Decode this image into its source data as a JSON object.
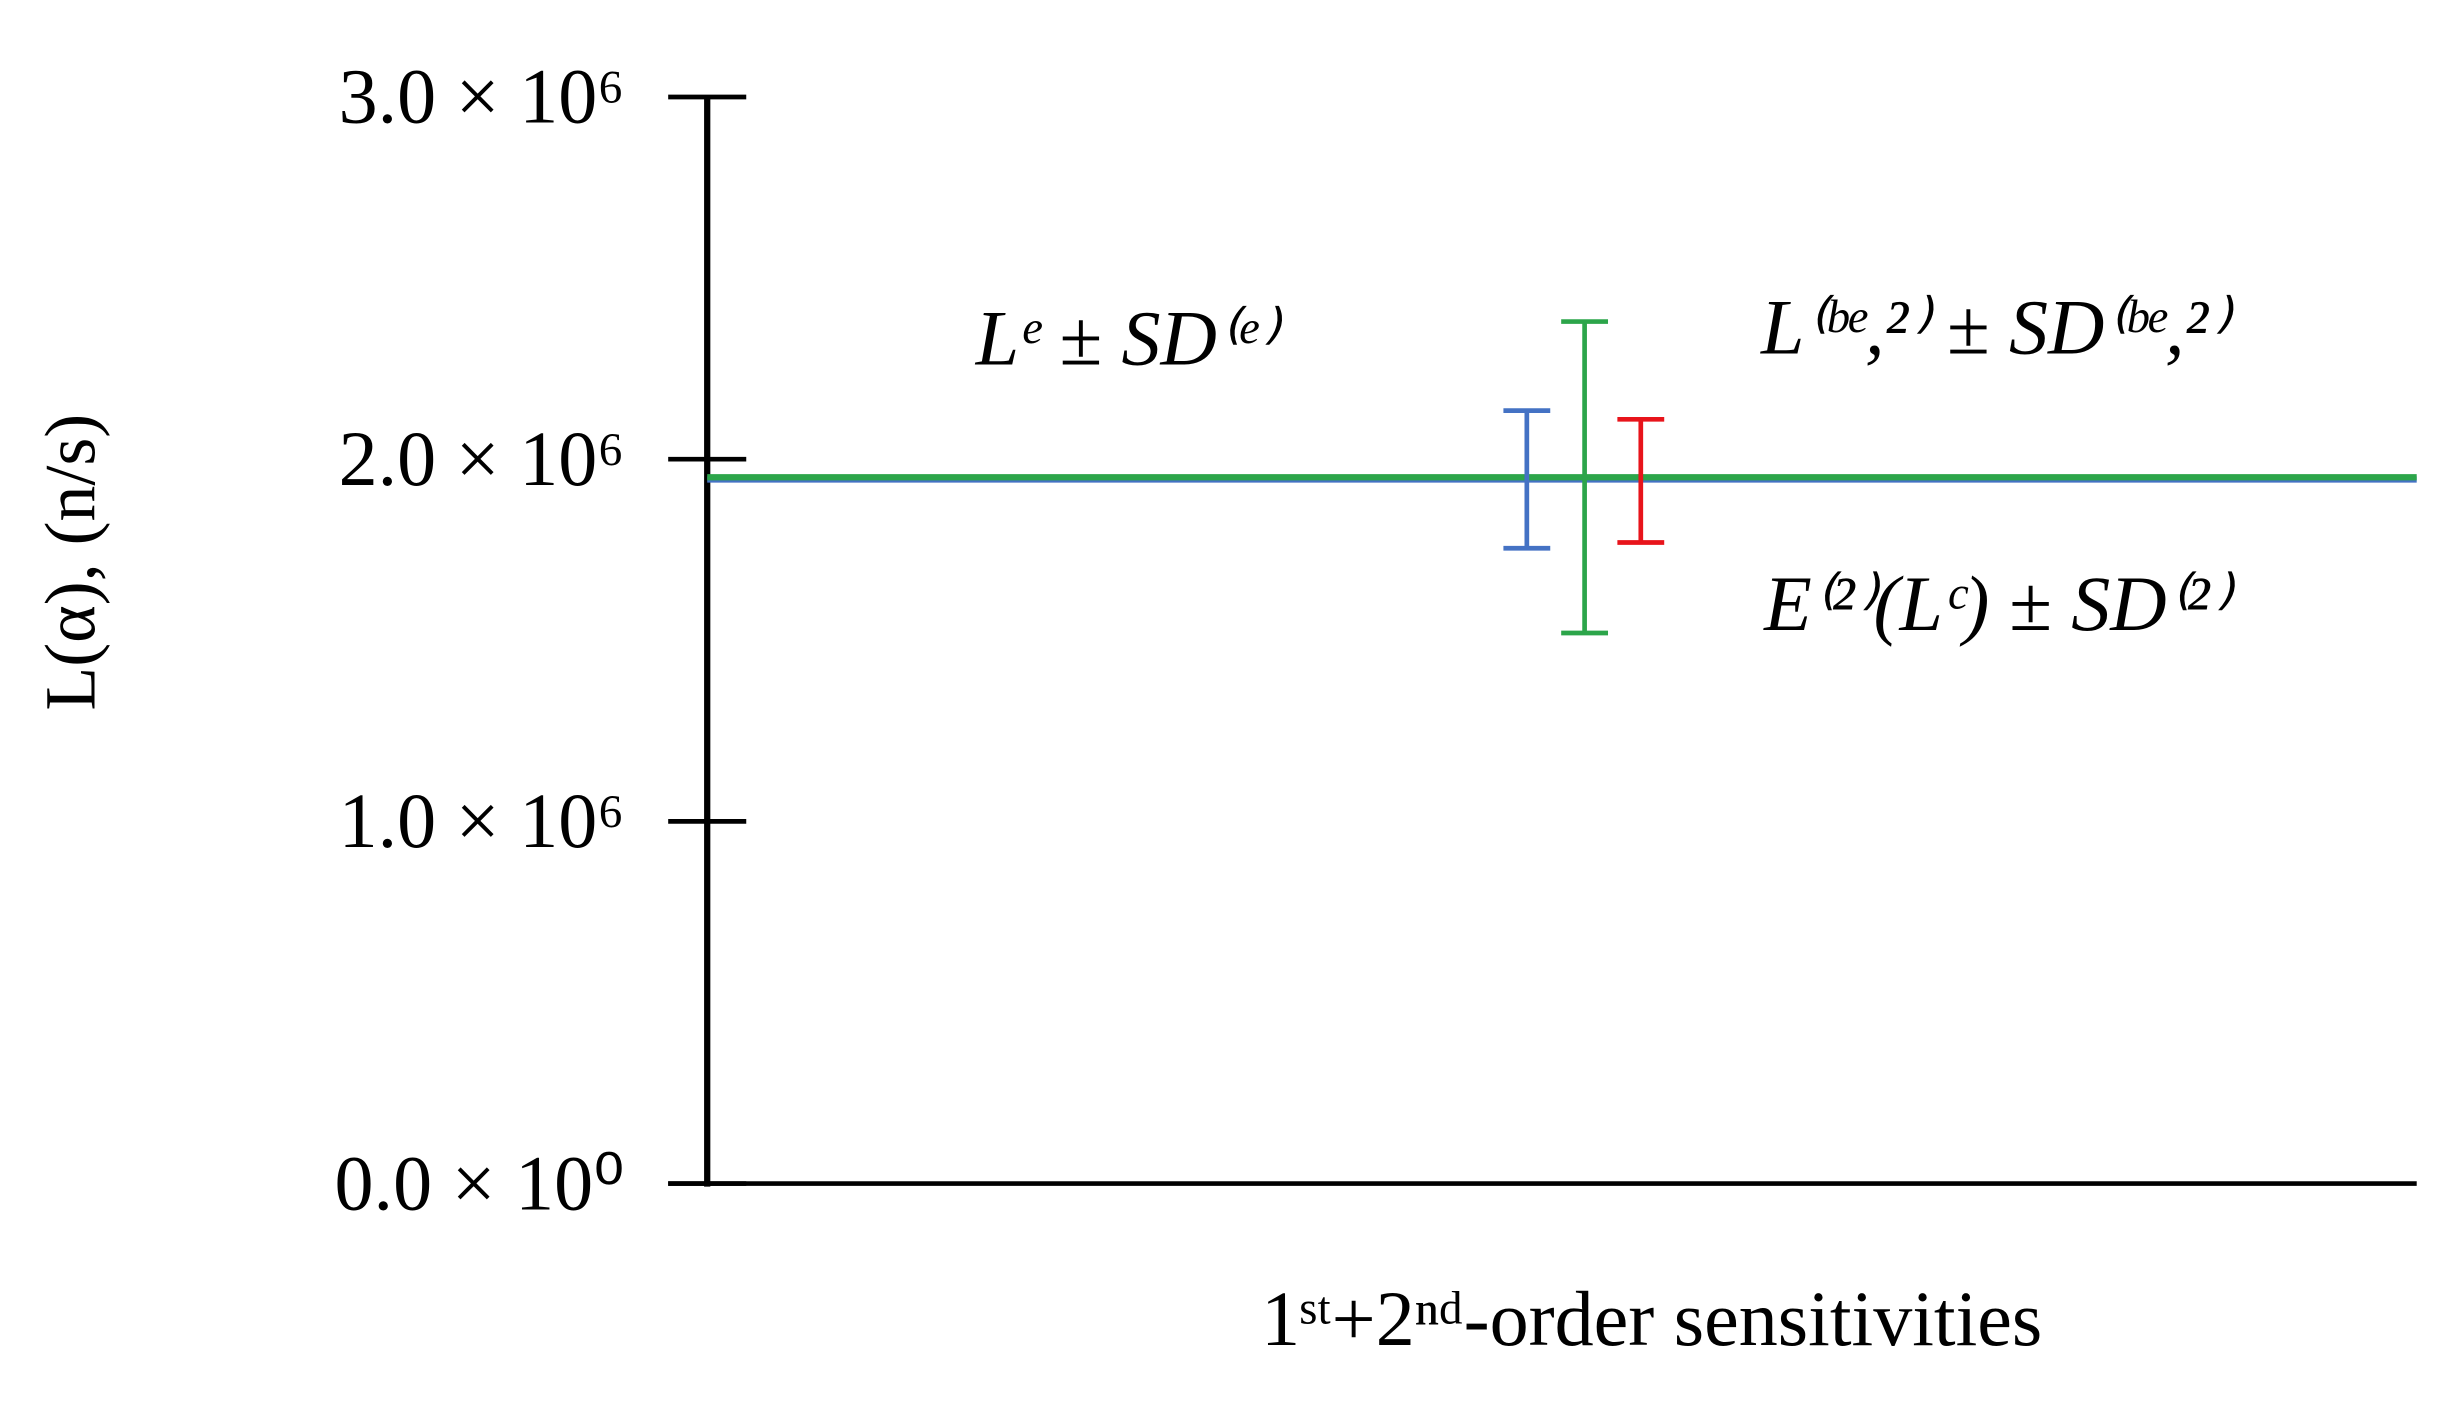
{
  "chart_data": {
    "type": "errorbar",
    "y_label": "L(α), (n/s)",
    "x_label": "1ˢᵗ+2ⁿᵈ-order sensitivities",
    "categories": [
      null
    ],
    "ylim": [
      0,
      3000000
    ],
    "yticks": [
      {
        "value": 0,
        "label": "0.0 × 10⁰"
      },
      {
        "value": 1000000,
        "label": "1.0 × 10⁶"
      },
      {
        "value": 2000000,
        "label": "2.0 × 10⁶"
      },
      {
        "value": 3000000,
        "label": "3.0 × 10⁶"
      }
    ],
    "series": [
      {
        "name": "Lᵉ ± SD⁽ᵉ⁾",
        "color": "#4472c4",
        "values": [
          1944000
        ],
        "errors": [
          190000
        ],
        "line": true
      },
      {
        "name": "L⁽ᵇᵉ,²⁾ ± SD⁽ᵇᵉ,²⁾",
        "color": "#2ca54a",
        "values": [
          1950000
        ],
        "errors": [
          430000
        ],
        "line": true
      },
      {
        "name": "E⁽²⁾(Lᶜ) ± SD⁽²⁾",
        "color": "#e8141b",
        "values": [
          1940000
        ],
        "errors": [
          170000
        ],
        "line": false
      }
    ]
  }
}
